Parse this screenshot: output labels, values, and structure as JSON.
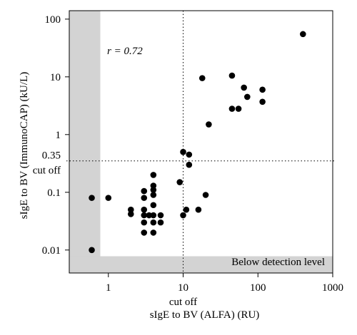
{
  "chart_data": {
    "type": "scatter",
    "title": "",
    "xlabel": "sIgE to BV (ALFA) (RU)",
    "ylabel": "sIgE to BV (ImmunoCAP) (kU/L)",
    "xscale": "log",
    "yscale": "log",
    "xlim": [
      0.3,
      1000
    ],
    "ylim": [
      0.004,
      140
    ],
    "xticks": [
      {
        "value": 1,
        "label": "1"
      },
      {
        "value": 10,
        "label": "10"
      },
      {
        "value": 100,
        "label": "100"
      },
      {
        "value": 1000,
        "label": "1000"
      }
    ],
    "yticks": [
      {
        "value": 0.01,
        "label": "0.01"
      },
      {
        "value": 0.1,
        "label": "0.1"
      },
      {
        "value": 1,
        "label": "1"
      },
      {
        "value": 10,
        "label": "10"
      },
      {
        "value": 100,
        "label": "100"
      }
    ],
    "x_cutoff": {
      "value": 10,
      "label": "cut off"
    },
    "y_cutoff": {
      "value": 0.35,
      "value_label": "0.35",
      "label": "cut off"
    },
    "annotation": "r = 0.72",
    "below_detection_label": "Below detection level",
    "below_detection_x": 0.78,
    "below_detection_y": 0.0078,
    "grid": false,
    "colors": {
      "points": "#000000",
      "shade": "#d3d3d3"
    },
    "points": [
      {
        "x": 0.6,
        "y": 0.08
      },
      {
        "x": 0.6,
        "y": 0.01
      },
      {
        "x": 1.0,
        "y": 0.08
      },
      {
        "x": 2.0,
        "y": 0.05
      },
      {
        "x": 2.0,
        "y": 0.042
      },
      {
        "x": 3.0,
        "y": 0.105
      },
      {
        "x": 3.0,
        "y": 0.08
      },
      {
        "x": 3.0,
        "y": 0.05
      },
      {
        "x": 3.0,
        "y": 0.04
      },
      {
        "x": 3.0,
        "y": 0.03
      },
      {
        "x": 3.0,
        "y": 0.02
      },
      {
        "x": 3.5,
        "y": 0.04
      },
      {
        "x": 4.0,
        "y": 0.2
      },
      {
        "x": 4.0,
        "y": 0.13
      },
      {
        "x": 4.0,
        "y": 0.11
      },
      {
        "x": 4.0,
        "y": 0.09
      },
      {
        "x": 4.0,
        "y": 0.06
      },
      {
        "x": 4.0,
        "y": 0.04
      },
      {
        "x": 4.0,
        "y": 0.03
      },
      {
        "x": 4.0,
        "y": 0.02
      },
      {
        "x": 5.0,
        "y": 0.04
      },
      {
        "x": 5.0,
        "y": 0.03
      },
      {
        "x": 9.0,
        "y": 0.15
      },
      {
        "x": 10.0,
        "y": 0.5
      },
      {
        "x": 10.0,
        "y": 0.04
      },
      {
        "x": 11.0,
        "y": 0.05
      },
      {
        "x": 12.0,
        "y": 0.45
      },
      {
        "x": 12.0,
        "y": 0.3
      },
      {
        "x": 16.0,
        "y": 0.05
      },
      {
        "x": 18.0,
        "y": 9.5
      },
      {
        "x": 20.0,
        "y": 0.09
      },
      {
        "x": 22.0,
        "y": 1.5
      },
      {
        "x": 45.0,
        "y": 10.5
      },
      {
        "x": 45.0,
        "y": 2.8
      },
      {
        "x": 55.0,
        "y": 2.8
      },
      {
        "x": 65.0,
        "y": 6.5
      },
      {
        "x": 72.0,
        "y": 4.5
      },
      {
        "x": 115.0,
        "y": 6.0
      },
      {
        "x": 115.0,
        "y": 3.7
      },
      {
        "x": 400.0,
        "y": 55.0
      }
    ]
  }
}
